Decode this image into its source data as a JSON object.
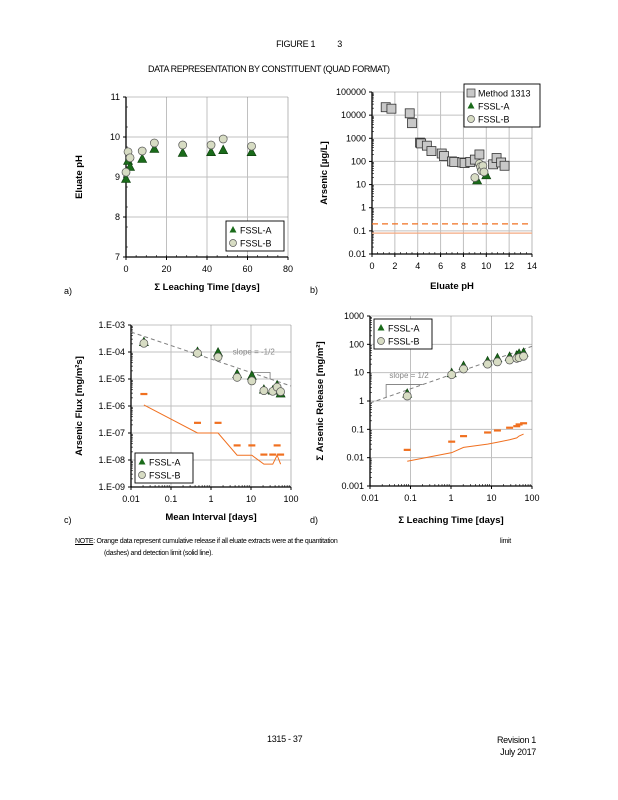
{
  "figure": {
    "title": "FIGURE 1",
    "number_suffix": "3",
    "subtitle": "DATA REPRESENTATION BY CONSTITUENT (QUAD FORMAT)"
  },
  "note": {
    "label": "NOTE",
    "line1": ": Orange data represent cumulative release if all eluate extracts were at the quantitation",
    "limit_word": "limit",
    "line2": "(dashes) and detection limit (solid line)."
  },
  "footer": {
    "page": "1315   - 37",
    "revision": "Revision 1",
    "date": "July 2017"
  },
  "colors": {
    "fssl_a": "#1a6b1a",
    "fssl_b": "#d7dcc3",
    "method_1313": "#c8c8c8",
    "orange": "#f07020",
    "orange_light": "#f4a880",
    "grid": "#c0c0c0",
    "trend": "#808080"
  },
  "chart_data": [
    {
      "panel": "a)",
      "type": "scatter",
      "title": "",
      "xlabel": "Σ Leaching Time [days]",
      "ylabel": "Eluate pH",
      "xscale": "linear",
      "yscale": "linear",
      "xlim": [
        0,
        80
      ],
      "ylim": [
        7,
        11
      ],
      "xticks": [
        0,
        20,
        40,
        60,
        80
      ],
      "xtick_labels": [
        "0",
        "20",
        "40",
        "60",
        "80"
      ],
      "yticks": [
        7,
        8,
        9,
        10,
        11
      ],
      "ytick_labels": [
        "7",
        "8",
        "9",
        "10",
        "11"
      ],
      "grid": true,
      "legend": "bottom-right",
      "legend_entries": [
        "FSSL-A",
        "FSSL-B"
      ],
      "series": [
        {
          "name": "FSSL-A",
          "marker": "triangle",
          "x": [
            0,
            1,
            2,
            8,
            14,
            28,
            42,
            48,
            62
          ],
          "y": [
            8.95,
            9.4,
            9.25,
            9.45,
            9.7,
            9.6,
            9.62,
            9.67,
            9.62
          ]
        },
        {
          "name": "FSSL-B",
          "marker": "circle",
          "x": [
            0,
            1,
            2,
            8,
            14,
            28,
            42,
            48,
            62
          ],
          "y": [
            9.12,
            9.63,
            9.48,
            9.65,
            9.85,
            9.8,
            9.8,
            9.95,
            9.77
          ]
        }
      ]
    },
    {
      "panel": "b)",
      "type": "scatter",
      "title": "",
      "xlabel": "Eluate pH",
      "ylabel": "Arsenic [µg/L]",
      "xscale": "linear",
      "yscale": "log",
      "xlim": [
        0,
        14
      ],
      "ylim": [
        0.01,
        100000
      ],
      "xticks": [
        0,
        2,
        4,
        6,
        8,
        10,
        12,
        14
      ],
      "xtick_labels": [
        "0",
        "2",
        "4",
        "6",
        "8",
        "10",
        "12",
        "14"
      ],
      "yticks": [
        0.01,
        0.1,
        1,
        10,
        100,
        1000,
        10000,
        100000
      ],
      "ytick_labels": [
        "0.01",
        "0.1",
        "1",
        "10",
        "100",
        "1000",
        "10000",
        "100000"
      ],
      "grid": true,
      "legend": "top-right",
      "legend_entries": [
        "Method 1313",
        "FSSL-A",
        "FSSL-B"
      ],
      "hlines": [
        {
          "name": "quantitation-limit",
          "y": 0.2,
          "style": "dashed",
          "color": "orange"
        },
        {
          "name": "detection-limit",
          "y": 0.08,
          "style": "solid",
          "color": "orange_light"
        }
      ],
      "series": [
        {
          "name": "Method 1313",
          "marker": "square",
          "x": [
            1.2,
            1.7,
            3.3,
            3.5,
            4.2,
            4.3,
            4.8,
            5.2,
            6.1,
            6.3,
            7.0,
            7.2,
            7.9,
            8.1,
            8.6,
            9.0,
            9.4,
            10.6,
            10.9,
            11.3,
            11.6
          ],
          "y": [
            22000,
            19000,
            12000,
            4500,
            650,
            600,
            480,
            280,
            220,
            170,
            100,
            95,
            90,
            85,
            95,
            120,
            200,
            75,
            140,
            90,
            65
          ]
        },
        {
          "name": "FSSL-A",
          "marker": "triangle",
          "x": [
            9.2,
            9.6,
            9.8,
            10.0
          ],
          "y": [
            15,
            60,
            40,
            25
          ]
        },
        {
          "name": "FSSL-B",
          "marker": "circle",
          "x": [
            9.0,
            9.4,
            9.5,
            9.6,
            9.7,
            9.8
          ],
          "y": [
            20,
            80,
            60,
            40,
            65,
            35
          ]
        }
      ]
    },
    {
      "panel": "c)",
      "type": "scatter",
      "title": "",
      "xlabel": "Mean Interval [days]",
      "ylabel": "Arsenic Flux [mg/m²s]",
      "xscale": "log",
      "yscale": "log",
      "xlim": [
        0.01,
        100
      ],
      "ylim": [
        1e-09,
        0.001
      ],
      "xticks": [
        0.01,
        0.1,
        1,
        10,
        100
      ],
      "xtick_labels": [
        "0.01",
        "0.1",
        "1",
        "10",
        "100"
      ],
      "yticks": [
        1e-09,
        1e-08,
        1e-07,
        1e-06,
        1e-05,
        0.0001,
        0.001
      ],
      "ytick_labels": [
        "1.E-09",
        "1.E-08",
        "1.E-07",
        "1.E-06",
        "1.E-05",
        "1.E-04",
        "1.E-03"
      ],
      "grid": true,
      "legend": "bottom-left",
      "legend_entries": [
        "FSSL-A",
        "FSSL-B"
      ],
      "annotation": {
        "text": "slope = -1/2",
        "x": 3.5,
        "y": 8e-05
      },
      "trend_line": {
        "x": [
          0.01,
          100
        ],
        "y": [
          0.00055,
          5.5e-06
        ]
      },
      "slope_triangle": {
        "x": [
          10,
          30,
          30
        ],
        "y": [
          1.74e-05,
          1.74e-05,
          1e-05
        ]
      },
      "series": [
        {
          "name": "FSSL-A",
          "marker": "triangle",
          "x": [
            0.021,
            0.46,
            1.5,
            4.5,
            10.5,
            21,
            35,
            45,
            55
          ],
          "y": [
            0.00023,
            0.0001,
            9.5e-05,
            1.5e-05,
            1.3e-05,
            4e-06,
            3.7e-06,
            5.8e-06,
            2.9e-06
          ]
        },
        {
          "name": "FSSL-B",
          "marker": "circle",
          "x": [
            0.021,
            0.46,
            1.5,
            4.5,
            10.5,
            21,
            35,
            45,
            55
          ],
          "y": [
            0.00021,
            9e-05,
            6.5e-05,
            1.15e-05,
            8.5e-06,
            3.7e-06,
            3.5e-06,
            5e-06,
            3.4e-06
          ]
        },
        {
          "name": "Quantitation limit",
          "marker": "dash",
          "color": "orange",
          "x": [
            0.021,
            0.46,
            1.5,
            4.5,
            10.5,
            21,
            35,
            45,
            55
          ],
          "y": [
            2.8e-06,
            2.4e-07,
            2.4e-07,
            3.5e-08,
            3.5e-08,
            1.6e-08,
            1.6e-08,
            3.5e-08,
            1.6e-08
          ]
        },
        {
          "name": "Detection limit",
          "marker": "line",
          "color": "orange",
          "x": [
            0.021,
            0.46,
            1.5,
            4.5,
            10.5,
            21,
            35,
            45,
            55
          ],
          "y": [
            1.1e-06,
            1e-07,
            1e-07,
            1.5e-08,
            1.5e-08,
            7e-09,
            7e-09,
            1.5e-08,
            7e-09
          ]
        }
      ]
    },
    {
      "panel": "d)",
      "type": "scatter",
      "title": "",
      "xlabel": "Σ Leaching Time [days]",
      "ylabel": "Σ Arsenic Release [mg/m²]",
      "xscale": "log",
      "yscale": "log",
      "xlim": [
        0.01,
        100
      ],
      "ylim": [
        0.001,
        1000
      ],
      "xticks": [
        0.01,
        0.1,
        1,
        10,
        100
      ],
      "xtick_labels": [
        "0.01",
        "0.1",
        "1",
        "10",
        "100"
      ],
      "yticks": [
        0.001,
        0.01,
        0.1,
        1,
        10,
        100,
        1000
      ],
      "ytick_labels": [
        "0.001",
        "0.01",
        "0.1",
        "1",
        "10",
        "100",
        "1000"
      ],
      "grid": true,
      "legend": "top-left",
      "legend_entries": [
        "FSSL-A",
        "FSSL-B"
      ],
      "annotation": {
        "text": "slope = 1/2",
        "x": 0.03,
        "y": 6.5
      },
      "trend_line": {
        "x": [
          0.01,
          100
        ],
        "y": [
          0.85,
          85
        ]
      },
      "slope_triangle": {
        "x": [
          0.025,
          0.025,
          0.2
        ],
        "y": [
          1.35,
          3.8,
          3.8
        ]
      },
      "series": [
        {
          "name": "FSSL-A",
          "marker": "triangle",
          "x": [
            0.083,
            1.04,
            2.04,
            8,
            14,
            28,
            42,
            48,
            62
          ],
          "y": [
            1.8,
            9.5,
            17,
            25,
            32,
            36,
            40,
            46,
            50
          ]
        },
        {
          "name": "FSSL-B",
          "marker": "circle",
          "x": [
            0.083,
            1.04,
            2.04,
            8,
            14,
            28,
            42,
            48,
            62
          ],
          "y": [
            1.5,
            8.5,
            13.5,
            20,
            24,
            28,
            32,
            34,
            38
          ]
        },
        {
          "name": "Quantitation limit",
          "marker": "dash",
          "color": "orange",
          "x": [
            0.083,
            1.04,
            2.04,
            8,
            14,
            28,
            42,
            48,
            62
          ],
          "y": [
            0.019,
            0.037,
            0.058,
            0.078,
            0.092,
            0.115,
            0.13,
            0.15,
            0.165
          ]
        },
        {
          "name": "Detection limit",
          "marker": "line",
          "color": "orange",
          "x": [
            0.083,
            1.04,
            2.04,
            8,
            14,
            28,
            42,
            48,
            62
          ],
          "y": [
            0.0075,
            0.015,
            0.023,
            0.03,
            0.035,
            0.043,
            0.05,
            0.058,
            0.068
          ]
        }
      ]
    }
  ]
}
